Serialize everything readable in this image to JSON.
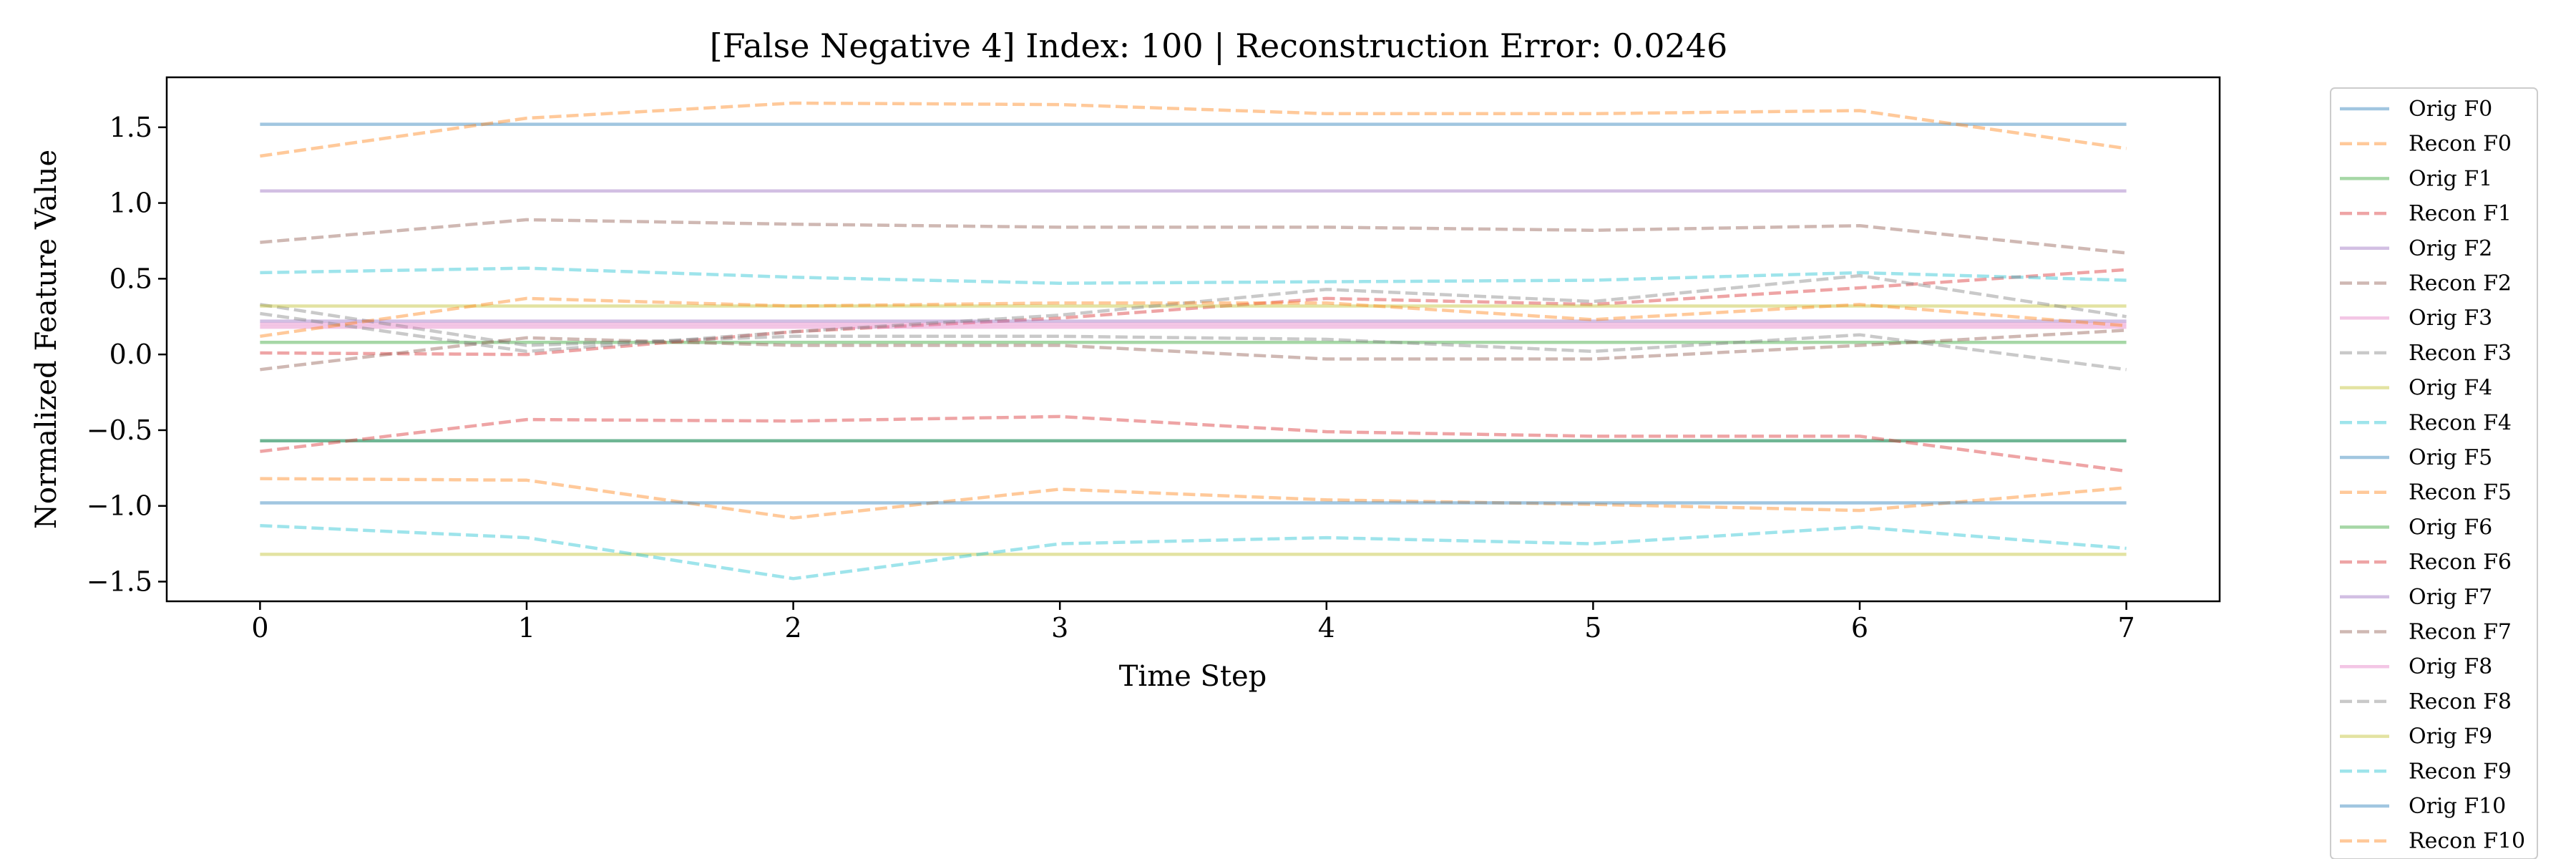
{
  "chart_data": {
    "type": "line",
    "title": "[False Negative 4] Index: 100 | Reconstruction Error: 0.0246",
    "xlabel": "Time Step",
    "ylabel": "Normalized Feature Value",
    "xlim": [
      -0.35,
      7.35
    ],
    "ylim": [
      -1.63,
      1.83
    ],
    "x": [
      0,
      1,
      2,
      3,
      4,
      5,
      6,
      7
    ],
    "xticks": [
      "0",
      "1",
      "2",
      "3",
      "4",
      "5",
      "6",
      "7"
    ],
    "yticks": [
      1.5,
      1.0,
      0.5,
      0.0,
      -0.5,
      -1.0,
      -1.5
    ],
    "ytick_labels": [
      "1.5",
      "1.0",
      "0.5",
      "0.0",
      "−0.5",
      "−1.0",
      "−1.5"
    ],
    "grid": false,
    "legend_position": "outside-right",
    "series": [
      {
        "name": "Orig F0",
        "style": "solid",
        "color": "#1f77b4",
        "values": [
          1.52,
          1.52,
          1.52,
          1.52,
          1.52,
          1.52,
          1.52,
          1.52
        ]
      },
      {
        "name": "Recon F0",
        "style": "dashed",
        "color": "#ff7f0e",
        "values": [
          1.31,
          1.56,
          1.66,
          1.65,
          1.59,
          1.59,
          1.61,
          1.36
        ]
      },
      {
        "name": "Orig F1",
        "style": "solid",
        "color": "#2ca02c",
        "values": [
          0.08,
          0.08,
          0.08,
          0.08,
          0.08,
          0.08,
          0.08,
          0.08
        ]
      },
      {
        "name": "Recon F1",
        "style": "dashed",
        "color": "#d62728",
        "values": [
          0.01,
          0.0,
          0.15,
          0.24,
          0.37,
          0.33,
          0.44,
          0.56
        ]
      },
      {
        "name": "Orig F2",
        "style": "solid",
        "color": "#9467bd",
        "values": [
          1.08,
          1.08,
          1.08,
          1.08,
          1.08,
          1.08,
          1.08,
          1.08
        ]
      },
      {
        "name": "Recon F2",
        "style": "dashed",
        "color": "#8c564b",
        "values": [
          0.74,
          0.89,
          0.86,
          0.84,
          0.84,
          0.82,
          0.85,
          0.67
        ]
      },
      {
        "name": "Orig F3",
        "style": "solid",
        "color": "#e377c2",
        "values": [
          0.2,
          0.2,
          0.2,
          0.2,
          0.2,
          0.2,
          0.2,
          0.2
        ]
      },
      {
        "name": "Recon F3",
        "style": "dashed",
        "color": "#7f7f7f",
        "values": [
          0.33,
          0.06,
          0.12,
          0.12,
          0.1,
          0.02,
          0.13,
          -0.1
        ]
      },
      {
        "name": "Orig F4",
        "style": "solid",
        "color": "#bcbd22",
        "values": [
          0.32,
          0.32,
          0.32,
          0.32,
          0.32,
          0.32,
          0.32,
          0.32
        ]
      },
      {
        "name": "Recon F4",
        "style": "dashed",
        "color": "#17becf",
        "values": [
          0.54,
          0.57,
          0.51,
          0.47,
          0.48,
          0.49,
          0.54,
          0.49
        ]
      },
      {
        "name": "Orig F5",
        "style": "solid",
        "color": "#1f77b4",
        "values": [
          -0.57,
          -0.57,
          -0.57,
          -0.57,
          -0.57,
          -0.57,
          -0.57,
          -0.57
        ]
      },
      {
        "name": "Recon F5",
        "style": "dashed",
        "color": "#ff7f0e",
        "values": [
          -0.82,
          -0.83,
          -1.08,
          -0.89,
          -0.96,
          -0.99,
          -1.03,
          -0.88
        ]
      },
      {
        "name": "Orig F6",
        "style": "solid",
        "color": "#2ca02c",
        "values": [
          -0.57,
          -0.57,
          -0.57,
          -0.57,
          -0.57,
          -0.57,
          -0.57,
          -0.57
        ]
      },
      {
        "name": "Recon F6",
        "style": "dashed",
        "color": "#d62728",
        "values": [
          -0.64,
          -0.43,
          -0.44,
          -0.41,
          -0.51,
          -0.54,
          -0.54,
          -0.77
        ]
      },
      {
        "name": "Orig F7",
        "style": "solid",
        "color": "#9467bd",
        "values": [
          0.22,
          0.22,
          0.22,
          0.22,
          0.22,
          0.22,
          0.22,
          0.22
        ]
      },
      {
        "name": "Recon F7",
        "style": "dashed",
        "color": "#8c564b",
        "values": [
          -0.1,
          0.11,
          0.06,
          0.06,
          -0.03,
          -0.03,
          0.06,
          0.16
        ]
      },
      {
        "name": "Orig F8",
        "style": "solid",
        "color": "#e377c2",
        "values": [
          0.18,
          0.18,
          0.18,
          0.18,
          0.18,
          0.18,
          0.18,
          0.18
        ]
      },
      {
        "name": "Recon F8",
        "style": "dashed",
        "color": "#7f7f7f",
        "values": [
          0.27,
          0.02,
          0.15,
          0.26,
          0.43,
          0.35,
          0.52,
          0.25
        ]
      },
      {
        "name": "Orig F9",
        "style": "solid",
        "color": "#bcbd22",
        "values": [
          -1.32,
          -1.32,
          -1.32,
          -1.32,
          -1.32,
          -1.32,
          -1.32,
          -1.32
        ]
      },
      {
        "name": "Recon F9",
        "style": "dashed",
        "color": "#17becf",
        "values": [
          -1.13,
          -1.21,
          -1.48,
          -1.25,
          -1.21,
          -1.25,
          -1.14,
          -1.28
        ]
      },
      {
        "name": "Orig F10",
        "style": "solid",
        "color": "#1f77b4",
        "values": [
          -0.98,
          -0.98,
          -0.98,
          -0.98,
          -0.98,
          -0.98,
          -0.98,
          -0.98
        ]
      },
      {
        "name": "Recon F10",
        "style": "dashed",
        "color": "#ff7f0e",
        "values": [
          0.12,
          0.37,
          0.32,
          0.34,
          0.34,
          0.23,
          0.33,
          0.19
        ]
      }
    ]
  }
}
